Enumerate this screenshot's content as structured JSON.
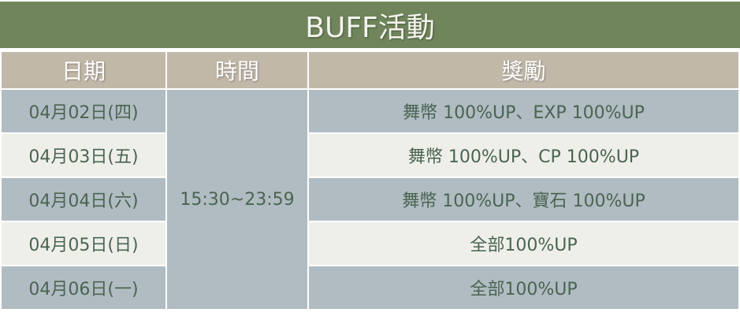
{
  "title": "BUFF活動",
  "headers": [
    "日期",
    "時間",
    "獎勵"
  ],
  "time": "15:30~23:59",
  "rows": [
    {
      "date": "04月02日(四)",
      "reward": "舞幣 100%UP、EXP 100%UP"
    },
    {
      "date": "04月03日(五)",
      "reward": "舞幣 100%UP、CP 100%UP"
    },
    {
      "date": "04月04日(六)",
      "reward": "舞幣 100%UP、寶石 100%UP"
    },
    {
      "date": "04月05日(日)",
      "reward": "全部100%UP"
    },
    {
      "date": "04月06日(一)",
      "reward": "全部100%UP"
    }
  ],
  "colors": {
    "title_bg": "#70855b",
    "header_bg": "#c1b8a8",
    "row_blue": "#b0bcc1",
    "row_light": "#efefea",
    "text": "#4a6452"
  }
}
